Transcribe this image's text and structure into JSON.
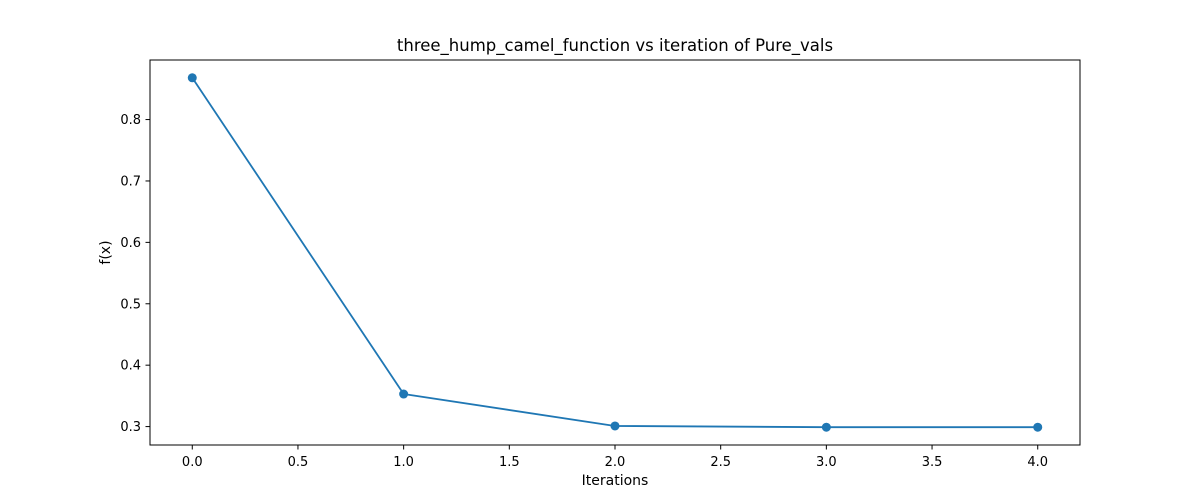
{
  "chart_data": {
    "type": "line",
    "title": "three_hump_camel_function vs iteration of Pure_vals",
    "xlabel": "Iterations",
    "ylabel": "f(x)",
    "xlim": [
      -0.2,
      4.2
    ],
    "ylim": [
      0.27,
      0.897
    ],
    "x_ticks": [
      0.0,
      0.5,
      1.0,
      1.5,
      2.0,
      2.5,
      3.0,
      3.5,
      4.0
    ],
    "x_tick_labels": [
      "0.0",
      "0.5",
      "1.0",
      "1.5",
      "2.0",
      "2.5",
      "3.0",
      "3.5",
      "4.0"
    ],
    "y_ticks": [
      0.3,
      0.4,
      0.5,
      0.6,
      0.7,
      0.8
    ],
    "y_tick_labels": [
      "0.3",
      "0.4",
      "0.5",
      "0.6",
      "0.7",
      "0.8"
    ],
    "grid": false,
    "series": [
      {
        "color": "#1f77b4",
        "marker": "circle",
        "x": [
          0,
          1,
          2,
          3,
          4
        ],
        "y": [
          0.868,
          0.353,
          0.301,
          0.299,
          0.299
        ]
      }
    ]
  }
}
